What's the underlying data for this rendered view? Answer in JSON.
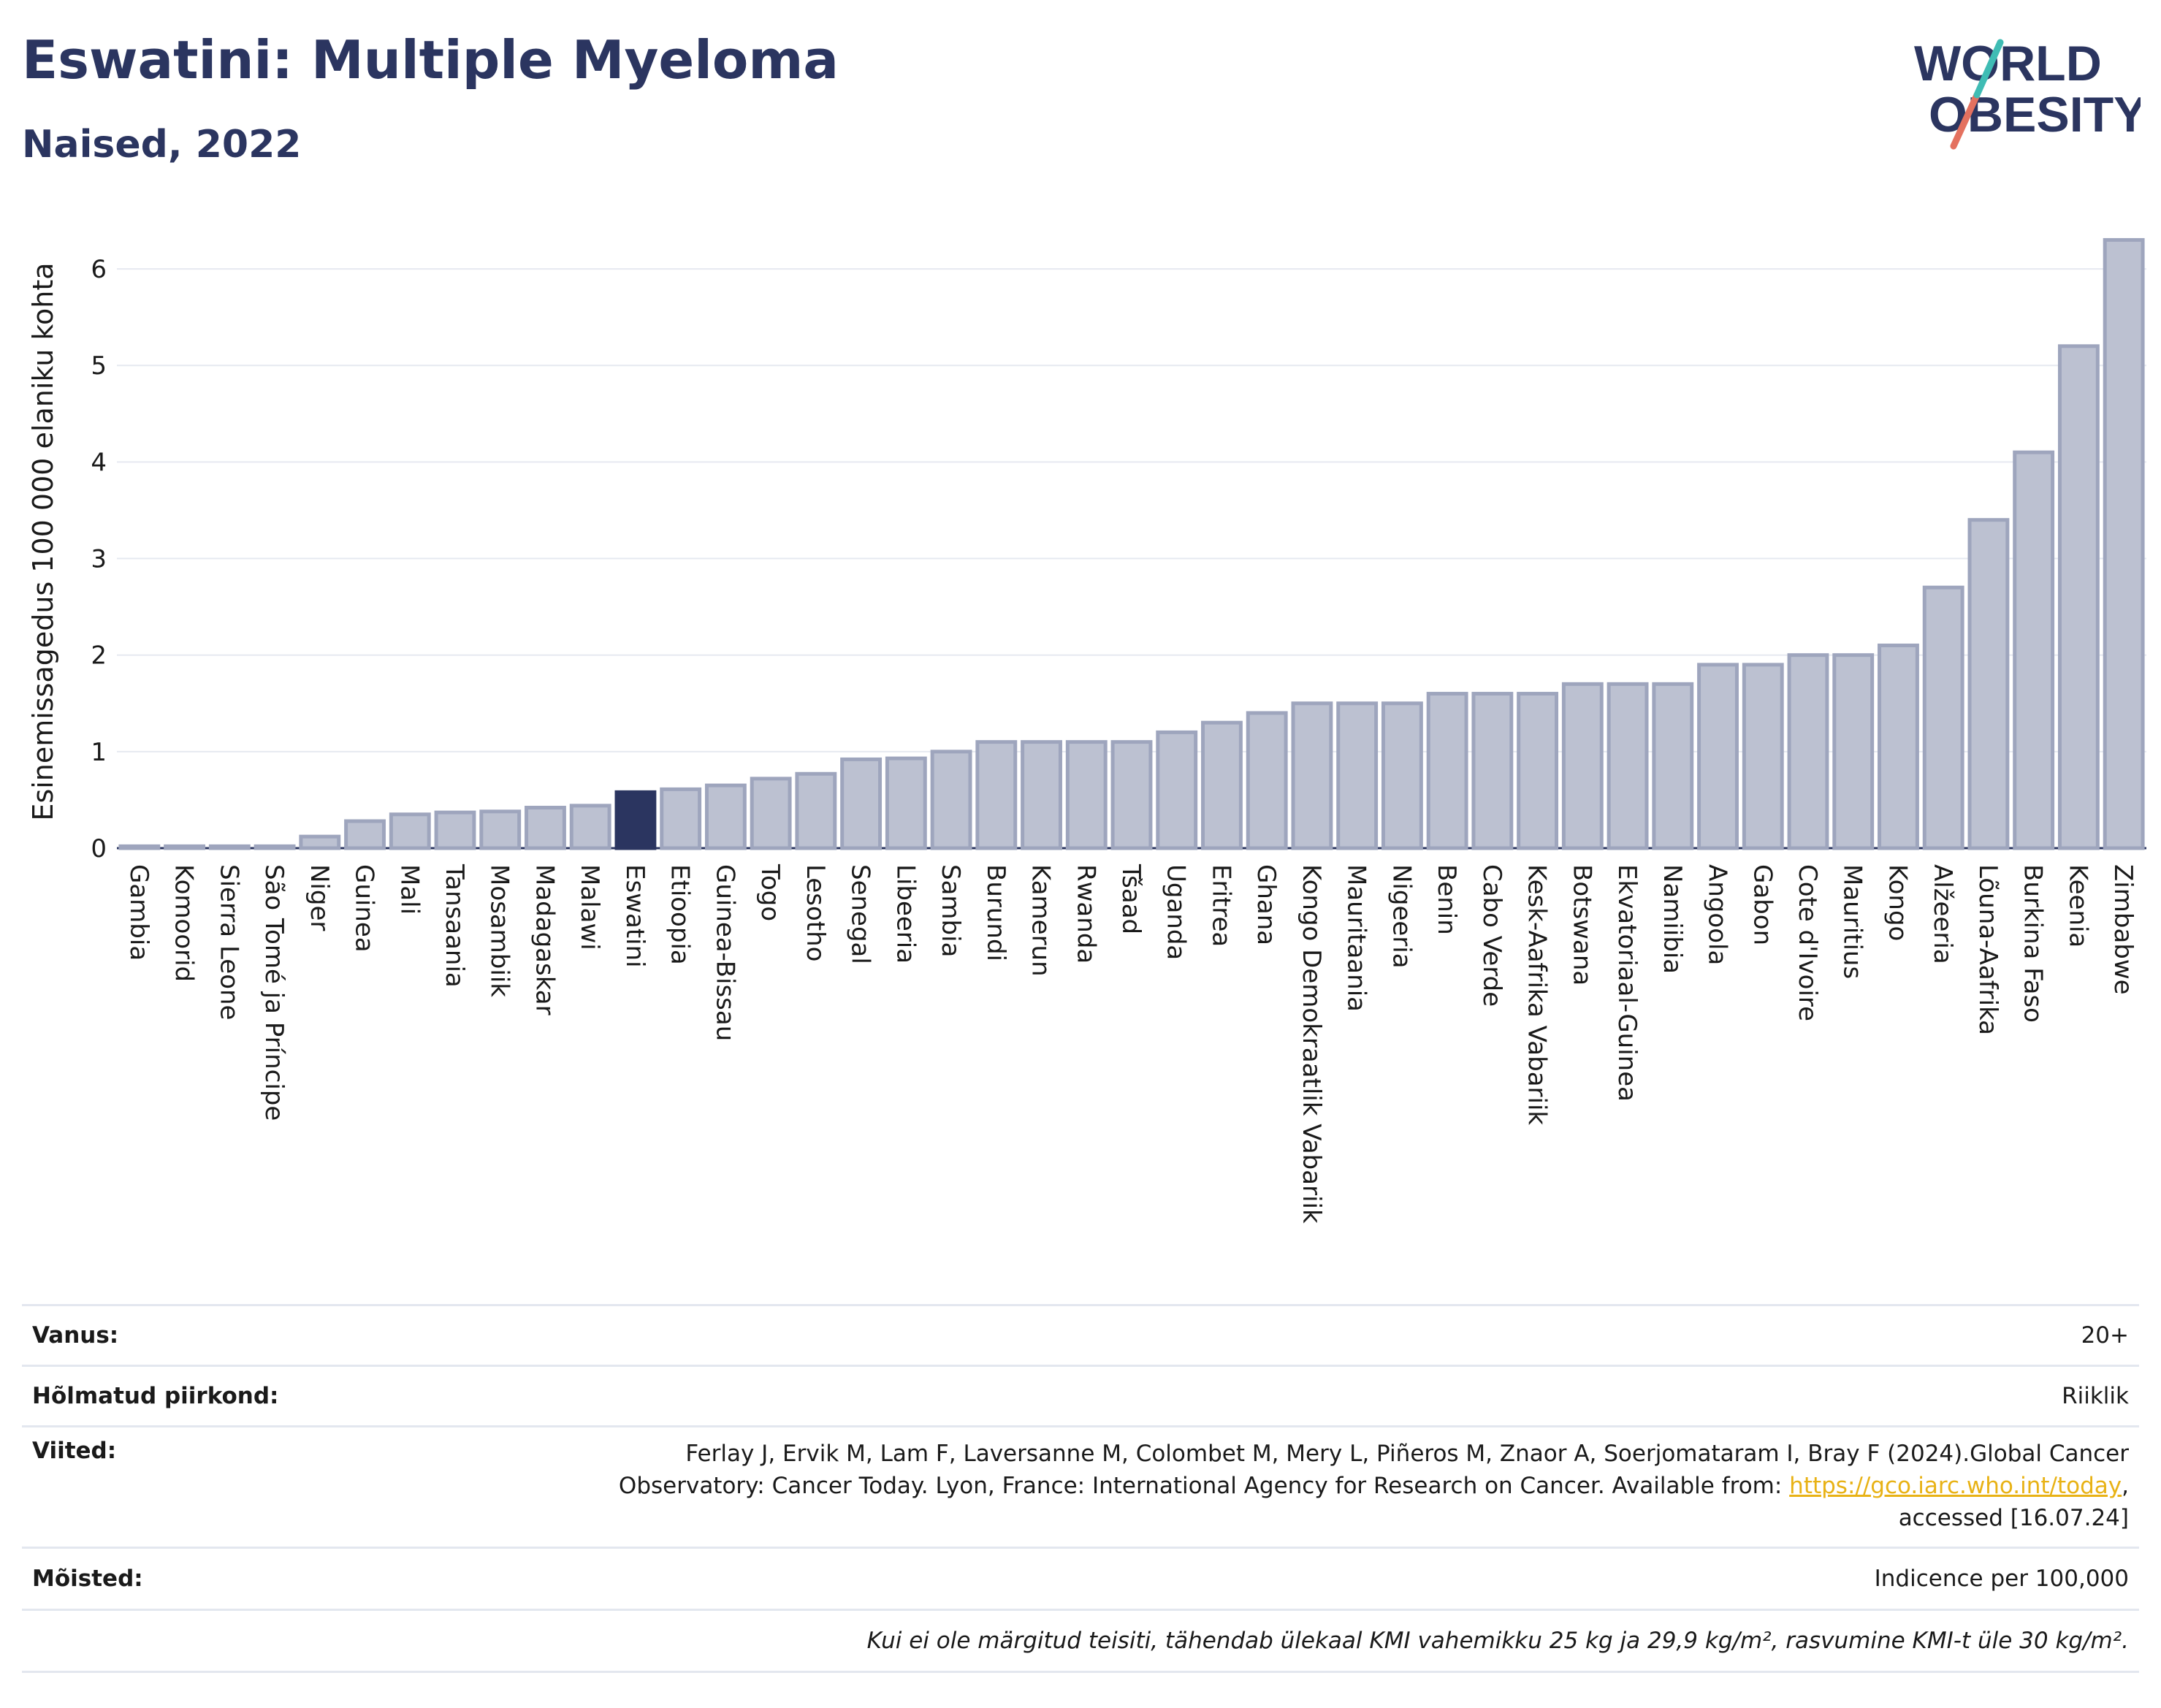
{
  "header": {
    "title": "Eswatini: Multiple Myeloma",
    "subtitle": "Naised, 2022"
  },
  "logo": {
    "line1": "WORLD",
    "line2": "OBESITY"
  },
  "colors": {
    "bar": "#bcc1d1",
    "bar_stroke": "#9ea5bd",
    "highlight": "#2b3560",
    "text_dark": "#2b3560",
    "grid": "#e6e9f0",
    "link": "#e8b215"
  },
  "chart_data": {
    "type": "bar",
    "ylabel": "Esinemissagedus 100 000 elaniku kohta",
    "xlabel": "",
    "ylim": [
      0,
      6.5
    ],
    "yticks": [
      0,
      1,
      2,
      3,
      4,
      5,
      6
    ],
    "highlight": "Eswatini",
    "grid": true,
    "categories": [
      "Gambia",
      "Komoorid",
      "Sierra Leone",
      "São Tomé ja Príncipe",
      "Niger",
      "Guinea",
      "Mali",
      "Tansaania",
      "Mosambiik",
      "Madagaskar",
      "Malawi",
      "Eswatini",
      "Etioopia",
      "Guinea-Bissau",
      "Togo",
      "Lesotho",
      "Senegal",
      "Libeeria",
      "Sambia",
      "Burundi",
      "Kamerun",
      "Rwanda",
      "Tšaad",
      "Uganda",
      "Eritrea",
      "Ghana",
      "Kongo Demokraatlik Vabariik",
      "Mauritaania",
      "Nigeeria",
      "Benin",
      "Cabo Verde",
      "Kesk-Aafrika Vabariik",
      "Botswana",
      "Ekvatoriaal-Guinea",
      "Namiibia",
      "Angoola",
      "Gabon",
      "Cote d'Ivoire",
      "Mauritius",
      "Kongo",
      "Alžeeria",
      "Lõuna-Aafrika",
      "Burkina Faso",
      "Keenia",
      "Zimbabwe"
    ],
    "values": [
      0.02,
      0.02,
      0.02,
      0.02,
      0.12,
      0.28,
      0.35,
      0.37,
      0.38,
      0.42,
      0.44,
      0.58,
      0.61,
      0.65,
      0.72,
      0.77,
      0.92,
      0.93,
      1.0,
      1.1,
      1.1,
      1.1,
      1.1,
      1.2,
      1.3,
      1.4,
      1.5,
      1.5,
      1.5,
      1.6,
      1.6,
      1.6,
      1.7,
      1.7,
      1.7,
      1.9,
      1.9,
      2.0,
      2.0,
      2.1,
      2.7,
      3.4,
      4.1,
      5.2,
      6.3
    ]
  },
  "info": {
    "age_label": "Vanus:",
    "age_value": "20+",
    "regions_label": "Hõlmatud piirkond:",
    "regions_value": "Riiklik",
    "refs_label": "Viited:",
    "refs_line1": "Ferlay J, Ervik M, Lam F, Laversanne M, Colombet M, Mery L, Piñeros M, Znaor A, Soerjomataram I, Bray F (2024).Global Cancer",
    "refs_line2": "Observatory: Cancer Today. Lyon, France: International Agency for Research on Cancer. Available from: ",
    "refs_link": "https://gco.iarc.who.int/today",
    "refs_line3": "accessed [16.07.24]",
    "defs_label": "Mõisted:",
    "defs_value": "Indicence per 100,000",
    "footnote": "Kui ei ole märgitud teisiti, tähendab ülekaal KMI vahemikku 25 kg ja 29,9 kg/m², rasvumine KMI-t üle 30 kg/m²."
  }
}
